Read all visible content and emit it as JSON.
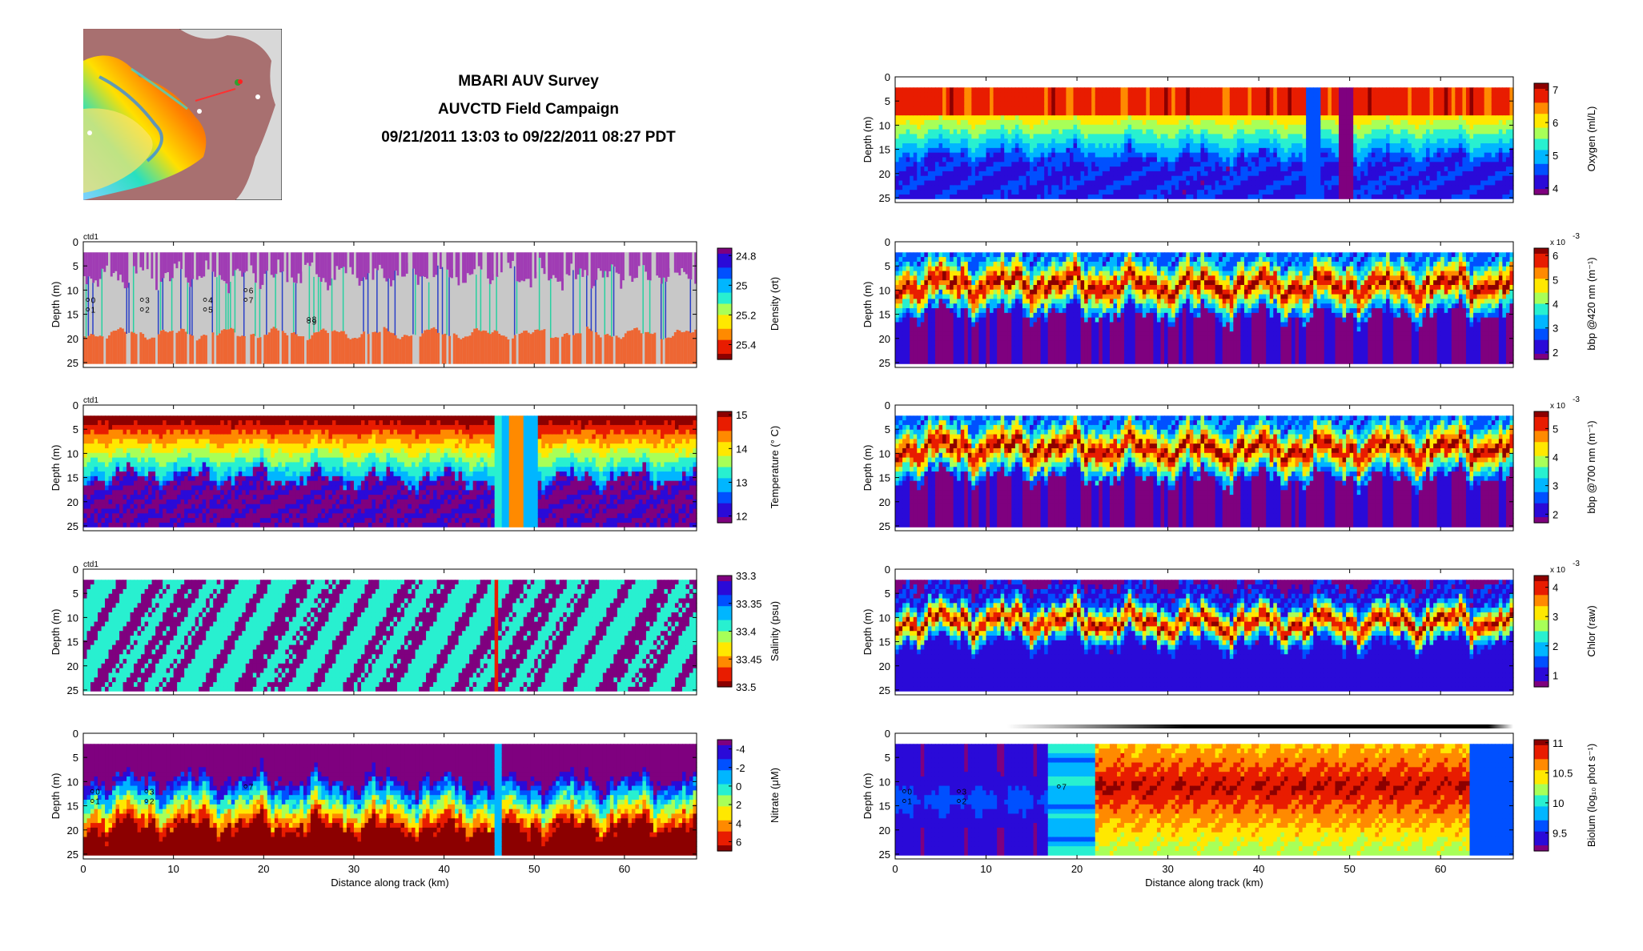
{
  "header": {
    "title_line1": "MBARI AUV Survey",
    "title_line2": "AUVCTD Field Campaign",
    "title_line3": "09/21/2011 13:03 to 09/22/2011 08:27 PDT"
  },
  "colors": {
    "jet": [
      "#7f007f",
      "#2a0ad8",
      "#0050ff",
      "#00b6ff",
      "#28f0d0",
      "#a8ff58",
      "#ffe800",
      "#ff8a00",
      "#e81c00",
      "#8c0000"
    ],
    "frame": "#000000"
  },
  "chart_data": [
    {
      "type": "heatmap",
      "id": "density",
      "tag": "ctd1",
      "ylabel": "Depth (m)",
      "ylim": [
        0,
        26
      ],
      "yticks": [
        "0",
        "5",
        "10",
        "15",
        "20",
        "25"
      ],
      "xlim": [
        0,
        68
      ],
      "xticks": [],
      "xlabel": "",
      "cbar_label": "Density (σt)",
      "cbar_ticks": [
        "24.8",
        "25",
        "25.2",
        "25.4"
      ],
      "cbar_range": [
        24.75,
        25.5
      ],
      "cbar_reversed": true,
      "profile_labels": [
        "0",
        "1",
        "2",
        "3",
        "4",
        "5",
        "6",
        "7",
        "8",
        "9"
      ],
      "profile_x_km": [
        0.5,
        0.5,
        6.5,
        6.5,
        13.5,
        13.5,
        18,
        18,
        25,
        25
      ],
      "profile_depth_m": [
        12,
        14,
        14,
        12,
        12,
        14,
        10,
        12,
        16,
        16.5
      ],
      "style": "density"
    },
    {
      "type": "heatmap",
      "id": "temperature",
      "tag": "ctd1",
      "ylabel": "Depth (m)",
      "ylim": [
        0,
        26
      ],
      "yticks": [
        "0",
        "5",
        "10",
        "15",
        "20",
        "25"
      ],
      "xlim": [
        0,
        68
      ],
      "xticks": [],
      "xlabel": "",
      "cbar_label": "Temperature (° C)",
      "cbar_ticks": [
        "12",
        "13",
        "14",
        "15"
      ],
      "cbar_range": [
        11.8,
        15.1
      ],
      "profile_labels": [],
      "style": "temperature"
    },
    {
      "type": "heatmap",
      "id": "salinity",
      "tag": "ctd1",
      "ylabel": "Depth (m)",
      "ylim": [
        0,
        26
      ],
      "yticks": [
        "0",
        "5",
        "10",
        "15",
        "20",
        "25"
      ],
      "xlim": [
        0,
        68
      ],
      "xticks": [],
      "xlabel": "",
      "cbar_label": "Salinity (psu)",
      "cbar_ticks": [
        "33.3",
        "33.35",
        "33.4",
        "33.45",
        "33.5"
      ],
      "cbar_range": [
        33.3,
        33.5
      ],
      "cbar_reversed": true,
      "profile_labels": [],
      "style": "salinity"
    },
    {
      "type": "heatmap",
      "id": "nitrate",
      "tag": "",
      "ylabel": "Depth (m)",
      "ylim": [
        0,
        26
      ],
      "yticks": [
        "0",
        "5",
        "10",
        "15",
        "20",
        "25"
      ],
      "xlim": [
        0,
        68
      ],
      "xticks": [
        "0",
        "10",
        "20",
        "30",
        "40",
        "50",
        "60"
      ],
      "xlabel": "Distance along track (km)",
      "cbar_label": "Nitrate (μM)",
      "cbar_ticks": [
        "-4",
        "-2",
        "0",
        "2",
        "4",
        "6"
      ],
      "cbar_range": [
        -5,
        7
      ],
      "cbar_reversed": true,
      "profile_labels": [
        "0",
        "1",
        "2",
        "3",
        "7"
      ],
      "profile_x_km": [
        1,
        1,
        7,
        7,
        18
      ],
      "profile_depth_m": [
        12,
        14,
        14,
        12,
        11
      ],
      "style": "nitrate"
    },
    {
      "type": "heatmap",
      "id": "oxygen",
      "tag": "",
      "ylabel": "Depth (m)",
      "ylim": [
        0,
        26
      ],
      "yticks": [
        "0",
        "5",
        "10",
        "15",
        "20",
        "25"
      ],
      "xlim": [
        0,
        68
      ],
      "xticks": [],
      "xlabel": "",
      "cbar_label": "Oxygen (ml/L)",
      "cbar_ticks": [
        "4",
        "5",
        "6",
        "7"
      ],
      "cbar_range": [
        3.8,
        7.2
      ],
      "profile_labels": [],
      "style": "oxygen"
    },
    {
      "type": "heatmap",
      "id": "bbp420",
      "tag": "",
      "ylabel": "Depth (m)",
      "ylim": [
        0,
        26
      ],
      "yticks": [
        "0",
        "5",
        "10",
        "15",
        "20",
        "25"
      ],
      "xlim": [
        0,
        68
      ],
      "xticks": [],
      "xlabel": "",
      "cbar_label": "bbp @420 nm (m⁻¹)",
      "cbar_ticks": [
        "2",
        "3",
        "4",
        "5",
        "6"
      ],
      "cbar_range": [
        1.7,
        6.3
      ],
      "cbar_exponent": "x 10",
      "cbar_exponent_power": "-3",
      "profile_labels": [],
      "style": "bbp"
    },
    {
      "type": "heatmap",
      "id": "bbp700",
      "tag": "",
      "ylabel": "Depth (m)",
      "ylim": [
        0,
        26
      ],
      "yticks": [
        "0",
        "5",
        "10",
        "15",
        "20",
        "25"
      ],
      "xlim": [
        0,
        68
      ],
      "xticks": [],
      "xlabel": "",
      "cbar_label": "bbp @700 nm (m⁻¹)",
      "cbar_ticks": [
        "2",
        "3",
        "4",
        "5"
      ],
      "cbar_range": [
        1.7,
        5.6
      ],
      "cbar_exponent": "x 10",
      "cbar_exponent_power": "-3",
      "profile_labels": [],
      "style": "bbp"
    },
    {
      "type": "heatmap",
      "id": "chlor",
      "tag": "",
      "ylabel": "Depth (m)",
      "ylim": [
        0,
        26
      ],
      "yticks": [
        "0",
        "5",
        "10",
        "15",
        "20",
        "25"
      ],
      "xlim": [
        0,
        68
      ],
      "xticks": [],
      "xlabel": "",
      "cbar_label": "Chlor (raw)",
      "cbar_ticks": [
        "1",
        "2",
        "3",
        "4"
      ],
      "cbar_range": [
        0.6,
        4.4
      ],
      "cbar_exponent": "x 10",
      "cbar_exponent_power": "-3",
      "profile_labels": [],
      "style": "chlor"
    },
    {
      "type": "heatmap",
      "id": "biolum",
      "tag": "",
      "ylabel": "Depth (m)",
      "ylim": [
        0,
        26
      ],
      "yticks": [
        "0",
        "5",
        "10",
        "15",
        "20",
        "25"
      ],
      "xlim": [
        0,
        68
      ],
      "xticks": [
        "0",
        "10",
        "20",
        "30",
        "40",
        "50",
        "60"
      ],
      "xlabel": "Distance along track (km)",
      "cbar_label": "Biolum (log₁₀ phot s⁻¹)",
      "cbar_ticks": [
        "9.5",
        "10",
        "10.5",
        "11"
      ],
      "cbar_range": [
        9.2,
        11.05
      ],
      "profile_labels": [
        "0",
        "1",
        "2",
        "3",
        "7"
      ],
      "profile_x_km": [
        1,
        1,
        7,
        7,
        18
      ],
      "profile_depth_m": [
        12,
        14,
        14,
        12,
        11
      ],
      "style": "biolum"
    }
  ]
}
